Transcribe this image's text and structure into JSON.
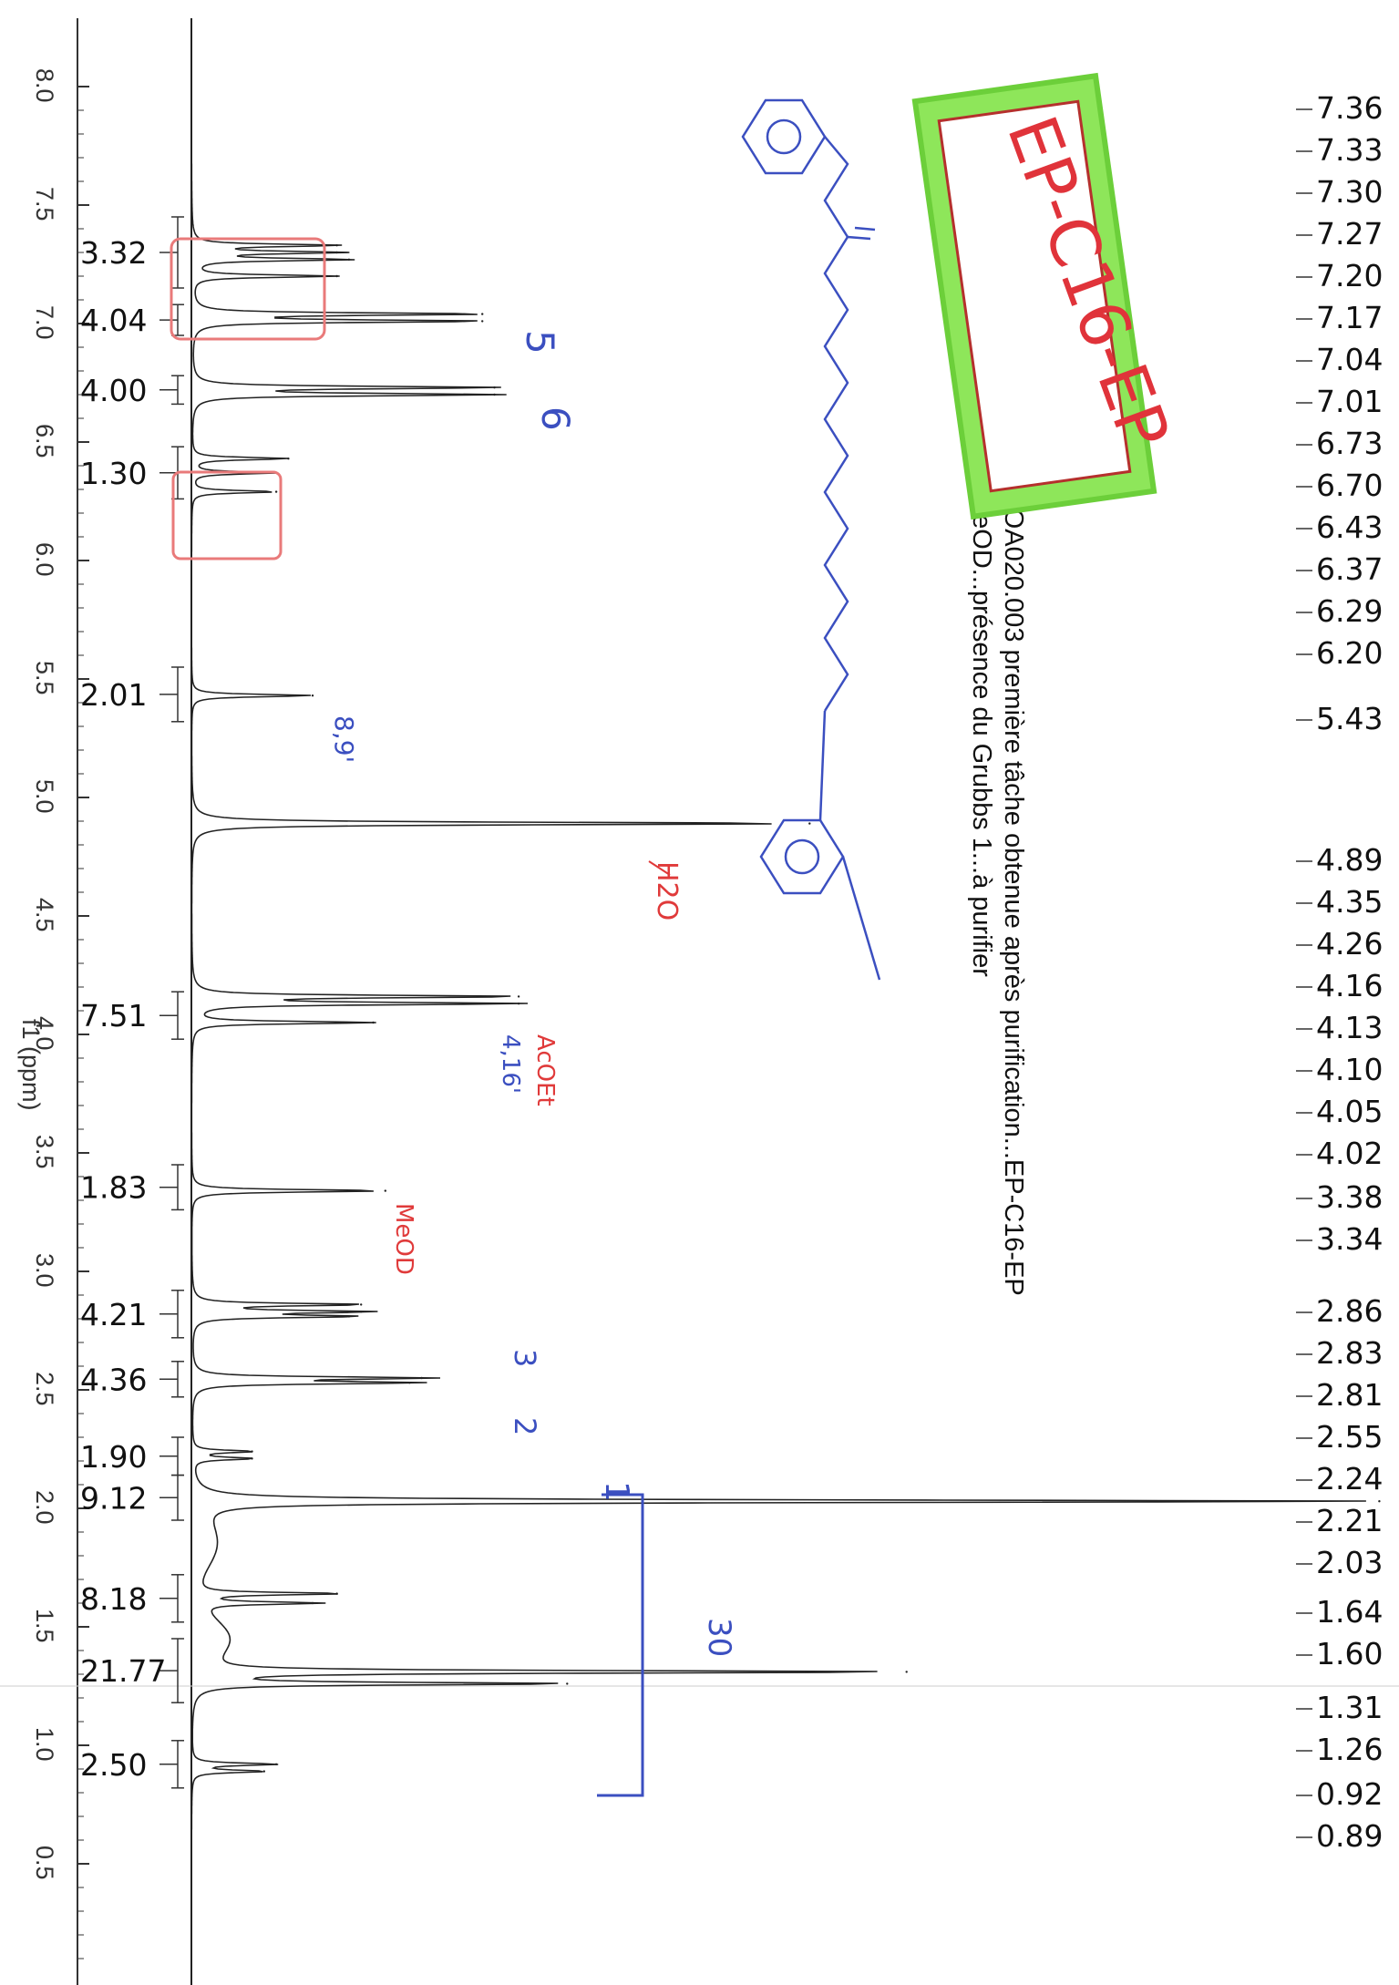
{
  "chart_data": {
    "type": "line",
    "title": "FOA020.003 première tâche obtenue après purification...EP-C16-EP",
    "subtitle": "MeOD...présence du Grubbs 1...à purifier",
    "xlabel": "f1 (ppm)",
    "ylabel": "",
    "xlim": [
      8.3,
      0.2
    ],
    "x_ticks": [
      "8.0",
      "7.5",
      "7.0",
      "6.5",
      "6.0",
      "5.5",
      "5.0",
      "4.5",
      "4.0",
      "3.5",
      "3.0",
      "2.5",
      "2.0",
      "1.5",
      "1.0",
      "0.5"
    ],
    "series": [
      {
        "peaks": [
          {
            "ppm": 7.33,
            "height": 0.12
          },
          {
            "ppm": 7.3,
            "height": 0.12
          },
          {
            "ppm": 7.27,
            "height": 0.13
          },
          {
            "ppm": 7.2,
            "height": 0.12
          },
          {
            "ppm": 7.04,
            "height": 0.24
          },
          {
            "ppm": 7.01,
            "height": 0.24
          },
          {
            "ppm": 6.73,
            "height": 0.25
          },
          {
            "ppm": 6.7,
            "height": 0.25
          },
          {
            "ppm": 6.43,
            "height": 0.08
          },
          {
            "ppm": 6.37,
            "height": 0.07
          },
          {
            "ppm": 6.29,
            "height": 0.07
          },
          {
            "ppm": 5.43,
            "height": 0.1
          },
          {
            "ppm": 4.89,
            "height": 0.51
          },
          {
            "ppm": 4.16,
            "height": 0.27
          },
          {
            "ppm": 4.13,
            "height": 0.27
          },
          {
            "ppm": 4.05,
            "height": 0.15
          },
          {
            "ppm": 3.34,
            "height": 0.16
          },
          {
            "ppm": 2.86,
            "height": 0.14
          },
          {
            "ppm": 2.83,
            "height": 0.14
          },
          {
            "ppm": 2.81,
            "height": 0.13
          },
          {
            "ppm": 2.55,
            "height": 0.19
          },
          {
            "ppm": 2.53,
            "height": 0.18
          },
          {
            "ppm": 2.24,
            "height": 0.05
          },
          {
            "ppm": 2.21,
            "height": 0.05
          },
          {
            "ppm": 2.03,
            "height": 0.98
          },
          {
            "ppm": 1.64,
            "height": 0.12
          },
          {
            "ppm": 1.6,
            "height": 0.1
          },
          {
            "ppm": 1.31,
            "height": 0.59
          },
          {
            "ppm": 1.26,
            "height": 0.31
          },
          {
            "ppm": 0.92,
            "height": 0.07
          },
          {
            "ppm": 0.89,
            "height": 0.06
          }
        ]
      }
    ],
    "integrals": [
      {
        "value": "3.32",
        "from": 7.45,
        "to": 7.15
      },
      {
        "value": "4.04",
        "from": 7.08,
        "to": 6.95
      },
      {
        "value": "4.00",
        "from": 6.78,
        "to": 6.66
      },
      {
        "value": "1.30",
        "from": 6.48,
        "to": 6.26
      },
      {
        "value": "2.01",
        "from": 5.55,
        "to": 5.32
      },
      {
        "value": "7.51",
        "from": 4.18,
        "to": 3.98
      },
      {
        "value": "1.83",
        "from": 3.45,
        "to": 3.26
      },
      {
        "value": "4.21",
        "from": 2.92,
        "to": 2.72
      },
      {
        "value": "4.36",
        "from": 2.62,
        "to": 2.47
      },
      {
        "value": "1.90",
        "from": 2.3,
        "to": 2.14
      },
      {
        "value": "9.12",
        "from": 2.14,
        "to": 1.95
      },
      {
        "value": "8.18",
        "from": 1.72,
        "to": 1.52
      },
      {
        "value": "21.77",
        "from": 1.45,
        "to": 1.18
      },
      {
        "value": "2.50",
        "from": 1.02,
        "to": 0.82
      }
    ],
    "peak_labels": [
      [
        "7.36",
        "7.33",
        "7.30",
        "7.27",
        "7.20",
        "7.17",
        "7.04",
        "7.01",
        "6.73",
        "6.70",
        "6.43",
        "6.37",
        "6.29",
        "6.20"
      ],
      [
        "5.43"
      ],
      [
        "4.89",
        "4.35",
        "4.26",
        "4.16",
        "4.13",
        "4.10",
        "4.05",
        "4.02"
      ],
      [
        "3.38",
        "3.34"
      ],
      [
        "2.86",
        "2.83",
        "2.81",
        "2.55",
        "2.24",
        "2.21",
        "2.03"
      ],
      [
        "1.64",
        "1.60"
      ],
      [
        "1.31",
        "1.26"
      ],
      [
        "0.92",
        "0.89"
      ]
    ]
  },
  "annotations": {
    "sample_label": "EP-C16-EP",
    "water_label": "H2O",
    "meod_label": "MeOD",
    "acoet_label": "AcOEt",
    "peak_5": "5",
    "peak_6": "6",
    "peak_3": "3",
    "peak_2": "2",
    "peak_1": "1",
    "peak_89": "8,9'",
    "peak_4": "4,16'",
    "peak_30": "30",
    "red_color": "#e03a3a",
    "blue_color": "#3b4fc0",
    "green_color": "#7ee54b"
  }
}
